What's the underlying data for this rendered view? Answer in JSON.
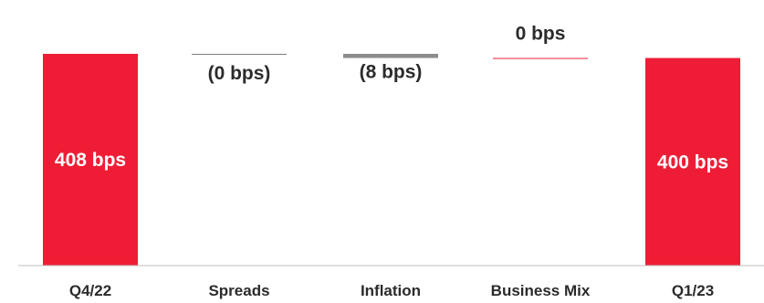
{
  "chart_data": {
    "type": "bar",
    "subtype": "waterfall",
    "unit": "bps",
    "categories": [
      "Q4/22",
      "Spreads",
      "Inflation",
      "Business Mix",
      "Q1/23"
    ],
    "values": [
      408,
      0,
      -8,
      0,
      400
    ],
    "kinds": [
      "total",
      "delta",
      "delta",
      "delta",
      "total"
    ],
    "data_labels": [
      "408 bps",
      "(0 bps)",
      "(8 bps)",
      "0 bps",
      "400 bps"
    ],
    "title": "",
    "xlabel": "",
    "ylabel": "",
    "ylim": [
      0,
      425
    ],
    "grid": false,
    "legend": "none",
    "colors": {
      "total": "#ee1d35",
      "delta_negative": "#8c8c8c",
      "delta_positive": "#ee1d35",
      "delta_zero_negative": "#7f7f7f",
      "total_label": "#ffffff",
      "text": "#2b2b2b",
      "axis": "#bfbfbf"
    }
  }
}
